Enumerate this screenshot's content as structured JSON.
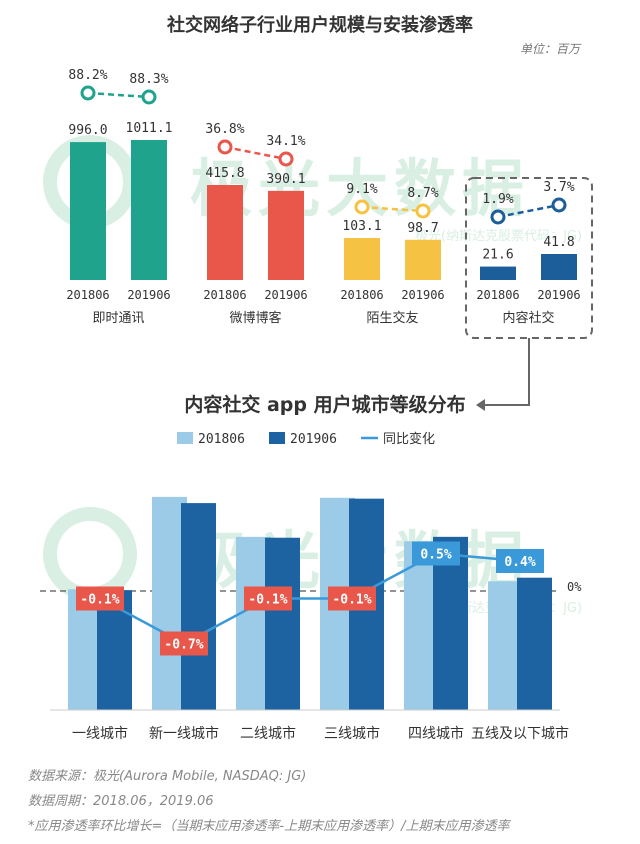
{
  "colors": {
    "chat": "#1fa38c",
    "weibo": "#e8574a",
    "stranger": "#f6c244",
    "content": "#1c5e9a",
    "light": "#9ccbe8",
    "dark": "#1d63a1",
    "line": "#3a9ad9",
    "red_label": "#e8574a",
    "blue_label": "#3a9ad9",
    "watermark": "#d9efe3"
  },
  "watermark": {
    "brand": "极光大数据",
    "code": "极光(纳斯达克股票代码：JG)"
  },
  "top": {
    "title": "社交网络子行业用户规模与安装渗透率",
    "unit": "单位：百万",
    "years": [
      "201806",
      "201906"
    ]
  },
  "bottom": {
    "title": "内容社交 app 用户城市等级分布",
    "zero_label": "0%"
  },
  "chart_data": [
    {
      "type": "bar",
      "title": "社交网络子行业用户规模与安装渗透率",
      "unit": "单位：百万",
      "categories": [
        "即时通讯",
        "微博博客",
        "陌生交友",
        "内容社交"
      ],
      "series": [
        {
          "name": "201806",
          "values": [
            996.0,
            415.8,
            103.1,
            21.6
          ]
        },
        {
          "name": "201906",
          "values": [
            1011.1,
            390.1,
            98.7,
            41.8
          ]
        }
      ],
      "penetration_labels": [
        [
          "88.2%",
          "88.3%"
        ],
        [
          "36.8%",
          "34.1%"
        ],
        [
          "9.1%",
          "8.7%"
        ],
        [
          "1.9%",
          "3.7%"
        ]
      ],
      "value_labels": [
        [
          "996.0",
          "1011.1"
        ],
        [
          "415.8",
          "390.1"
        ],
        [
          "103.1",
          "98.7"
        ],
        [
          "21.6",
          "41.8"
        ]
      ]
    },
    {
      "type": "bar",
      "title": "内容社交 app 用户城市等级分布",
      "categories": [
        "一线城市",
        "新一线城市",
        "二线城市",
        "三线城市",
        "四线城市",
        "五线及以下城市"
      ],
      "legend": [
        "201806",
        "201906",
        "同比变化"
      ],
      "series": [
        {
          "name": "201806",
          "values": [
            13.6,
            24.0,
            19.5,
            23.9,
            19.0,
            14.5
          ]
        },
        {
          "name": "201906",
          "values": [
            13.5,
            23.3,
            19.4,
            23.8,
            19.5,
            14.9
          ]
        },
        {
          "name": "同比变化",
          "values": [
            -0.1,
            -0.7,
            -0.1,
            -0.1,
            0.5,
            0.4
          ],
          "labels": [
            "-0.1%",
            "-0.7%",
            "-0.1%",
            "-0.1%",
            "0.5%",
            "0.4%"
          ]
        }
      ]
    }
  ],
  "footer": {
    "source": "数据来源：极光(Aurora Mobile, NASDAQ: JG)",
    "period": "数据周期：2018.06，2019.06",
    "note": "*应用渗透率环比增长=（当期末应用渗透率-上期末应用渗透率）/上期末应用渗透率"
  }
}
